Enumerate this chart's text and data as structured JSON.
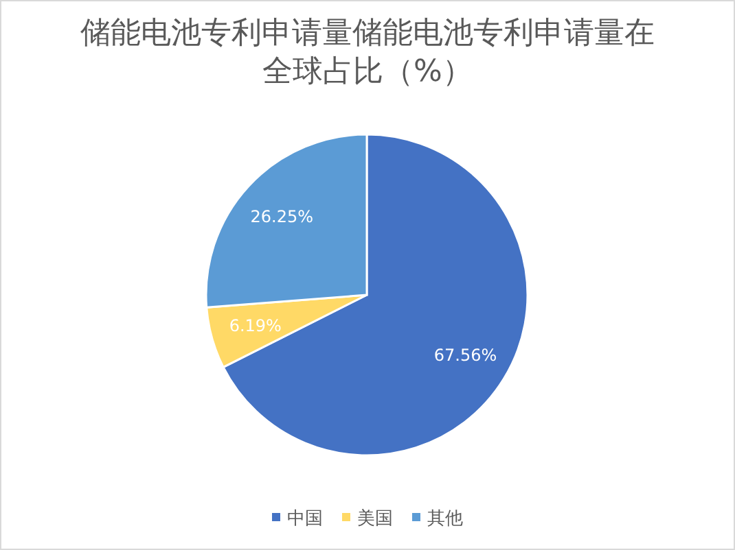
{
  "chart_data": {
    "type": "pie",
    "title": "储能电池专利申请量储能电池专利申请量在全球占比（%）",
    "categories": [
      "中国",
      "美国",
      "其他"
    ],
    "values": [
      67.56,
      6.19,
      26.25
    ],
    "colors": [
      "#4472c4",
      "#ffd966",
      "#5b9bd5"
    ],
    "value_labels": [
      "67.56%",
      "6.19%",
      "26.25%"
    ],
    "legend": "bottom"
  }
}
